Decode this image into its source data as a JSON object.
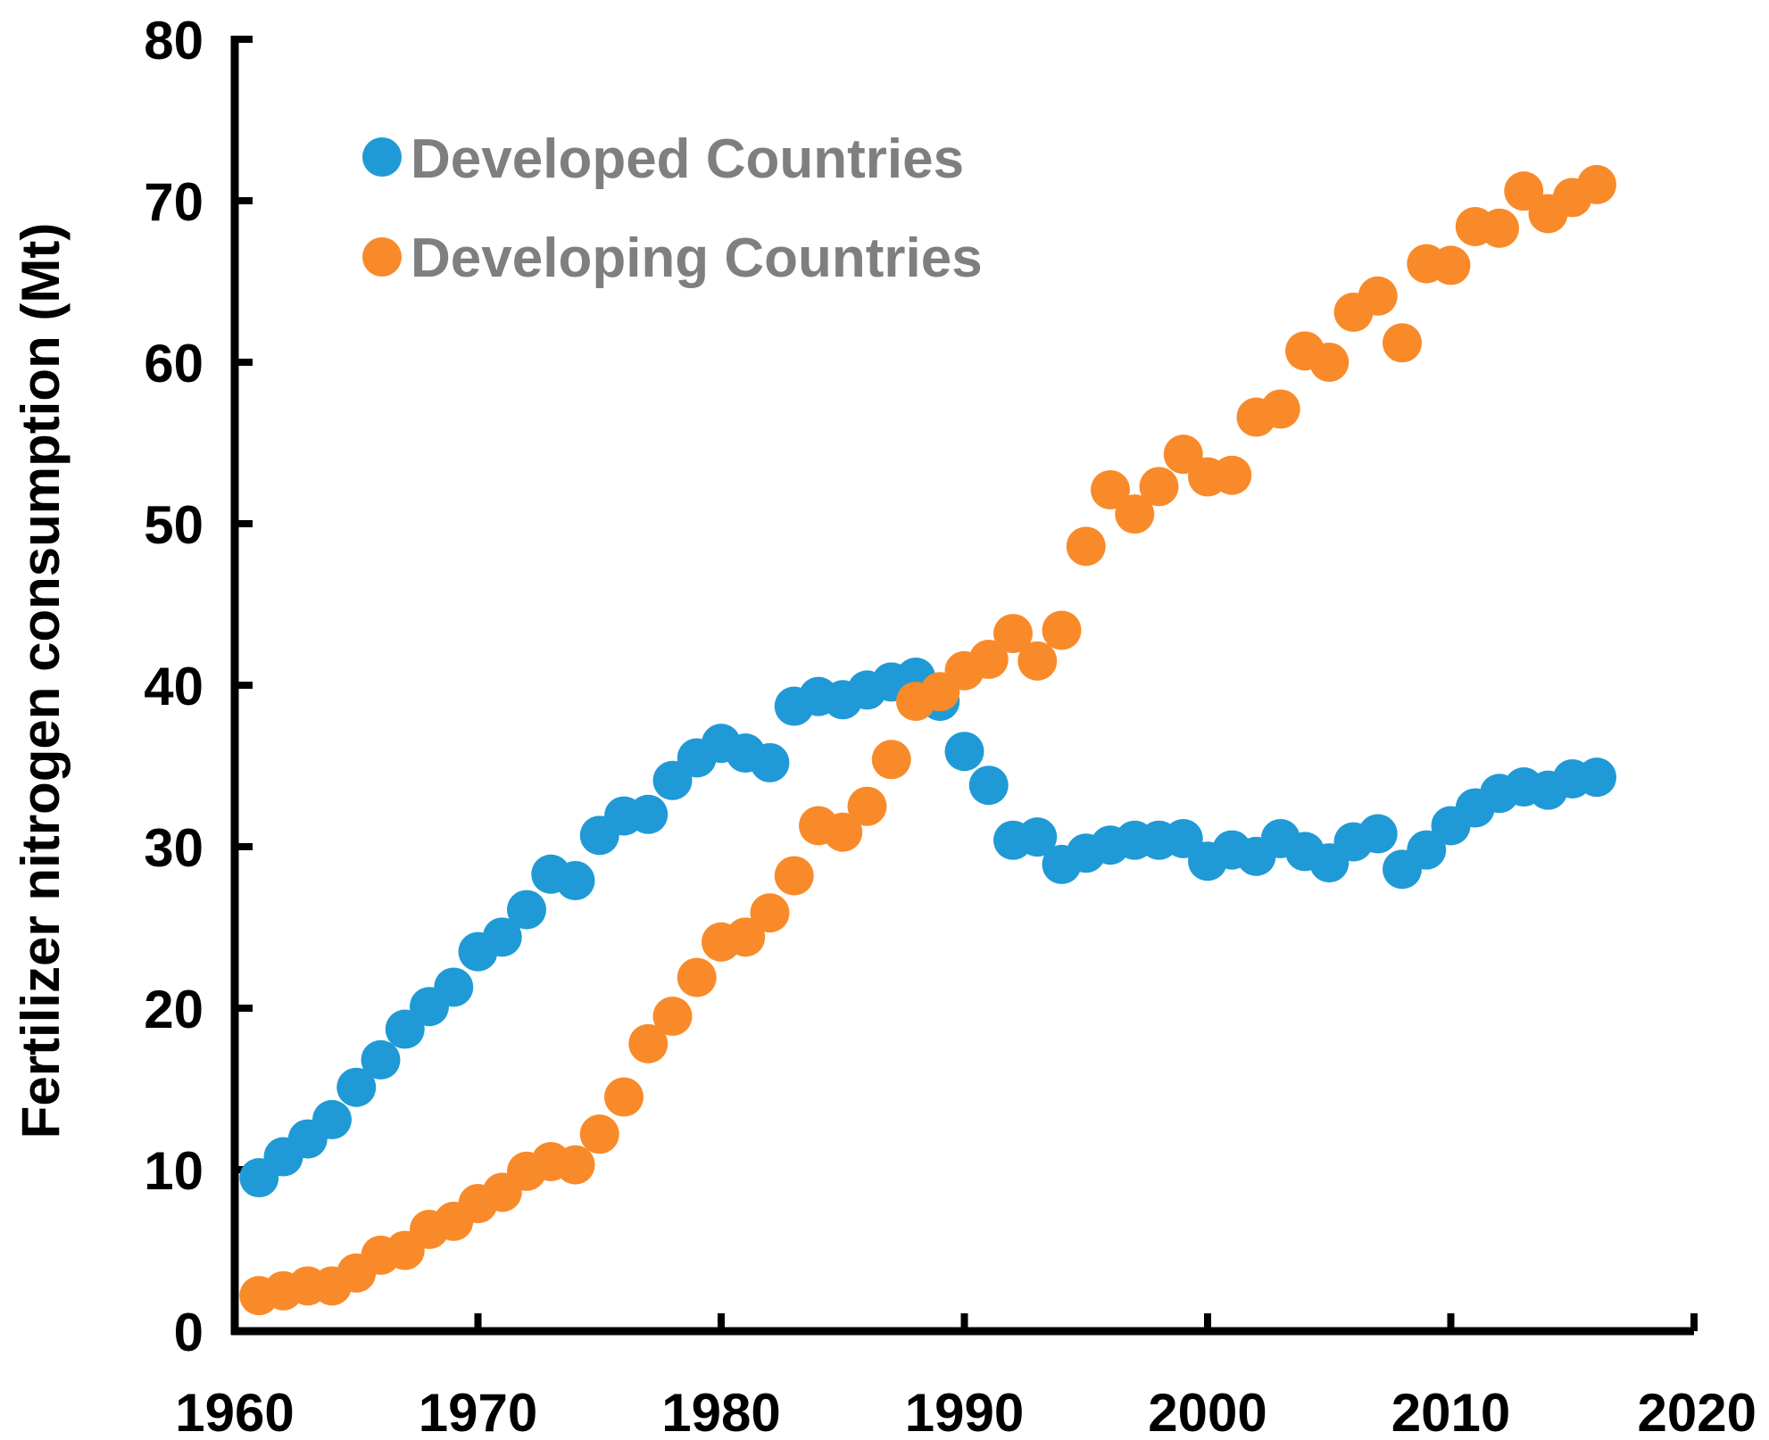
{
  "chart_data": {
    "type": "scatter",
    "title": "",
    "xlabel": "",
    "ylabel": "Fertilizer nitrogen consumption (Mt)",
    "xlim": [
      1960,
      2020
    ],
    "ylim": [
      0,
      80
    ],
    "xticks": [
      1960,
      1970,
      1980,
      1990,
      2000,
      2010,
      2020
    ],
    "yticks": [
      0,
      10,
      20,
      30,
      40,
      50,
      60,
      70,
      80
    ],
    "legend_position": "top-left",
    "grid": false,
    "x": [
      1961,
      1962,
      1963,
      1964,
      1965,
      1966,
      1967,
      1968,
      1969,
      1970,
      1971,
      1972,
      1973,
      1974,
      1975,
      1976,
      1977,
      1978,
      1979,
      1980,
      1981,
      1982,
      1983,
      1984,
      1985,
      1986,
      1987,
      1988,
      1989,
      1990,
      1991,
      1992,
      1993,
      1994,
      1995,
      1996,
      1997,
      1998,
      1999,
      2000,
      2001,
      2002,
      2003,
      2004,
      2005,
      2006,
      2007,
      2008,
      2009,
      2010,
      2011,
      2012,
      2013,
      2014,
      2015,
      2016
    ],
    "series": [
      {
        "name": "Developed Countries",
        "color": "#1f9ad6",
        "values": [
          9.5,
          10.8,
          11.9,
          13.1,
          15.1,
          16.8,
          18.7,
          20.1,
          21.3,
          23.5,
          24.4,
          26.1,
          28.3,
          27.9,
          30.7,
          31.9,
          32.0,
          34.1,
          35.5,
          36.4,
          35.8,
          35.2,
          38.7,
          39.3,
          39.1,
          39.7,
          40.2,
          40.5,
          39.0,
          35.9,
          33.8,
          30.4,
          30.6,
          28.9,
          29.6,
          30.1,
          30.4,
          30.4,
          30.5,
          29.1,
          29.8,
          29.4,
          30.5,
          29.7,
          29.0,
          30.3,
          30.8,
          28.6,
          29.8,
          31.3,
          32.4,
          33.3,
          33.7,
          33.5,
          34.2,
          34.3
        ]
      },
      {
        "name": "Developing Countries",
        "color": "#f98a2a",
        "values": [
          2.2,
          2.5,
          2.8,
          2.8,
          3.6,
          4.7,
          5.0,
          6.3,
          6.8,
          7.9,
          8.6,
          9.9,
          10.5,
          10.3,
          12.2,
          14.5,
          17.8,
          19.5,
          21.9,
          24.1,
          24.4,
          25.9,
          28.2,
          31.3,
          30.9,
          32.5,
          35.4,
          39.0,
          39.6,
          40.9,
          41.6,
          43.2,
          41.5,
          43.4,
          48.6,
          52.1,
          50.6,
          52.3,
          54.3,
          52.9,
          53.0,
          56.6,
          57.1,
          60.7,
          60.0,
          63.1,
          64.1,
          61.2,
          66.1,
          66.0,
          68.4,
          68.3,
          70.6,
          69.2,
          70.2,
          71.0
        ]
      }
    ]
  }
}
